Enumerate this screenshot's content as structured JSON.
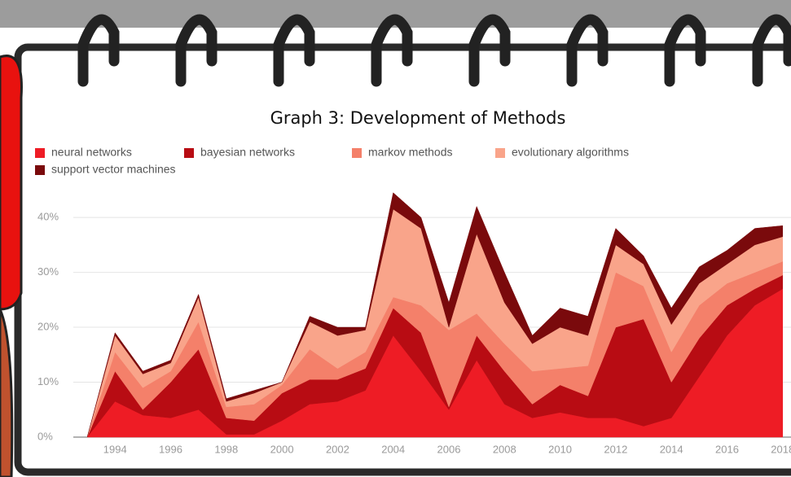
{
  "chart_data": {
    "type": "stacked-area",
    "title": "Graph 3: Development of Methods",
    "x": [
      1993,
      1994,
      1995,
      1996,
      1997,
      1998,
      1999,
      2000,
      2001,
      2002,
      2003,
      2004,
      2005,
      2006,
      2007,
      2008,
      2009,
      2010,
      2011,
      2012,
      2013,
      2014,
      2015,
      2016,
      2017,
      2018
    ],
    "series": [
      {
        "name": "neural networks",
        "color": "#ee1c25",
        "values": [
          0,
          6.5,
          4,
          3.5,
          5,
          0.5,
          0.5,
          3,
          6,
          6.5,
          8.5,
          18.5,
          12,
          5,
          14,
          6,
          3.5,
          4.5,
          3.5,
          3.5,
          2,
          3.5,
          11,
          18.5,
          24,
          27
        ]
      },
      {
        "name": "bayesian networks",
        "color": "#b80c13",
        "values": [
          0,
          5.5,
          1,
          6.5,
          11,
          3,
          2.5,
          5,
          4.5,
          4,
          4,
          5,
          7,
          0.5,
          4.5,
          6,
          2.5,
          5,
          4,
          16.5,
          19.5,
          6.5,
          7,
          5.5,
          3,
          2.5
        ]
      },
      {
        "name": "markov methods",
        "color": "#f4806a",
        "values": [
          0,
          3.5,
          4,
          2,
          5,
          2,
          3,
          1.5,
          5.5,
          2,
          3,
          2,
          5,
          14,
          4,
          5,
          6,
          3,
          5.5,
          10,
          6,
          5.5,
          6,
          4,
          3,
          2.5
        ]
      },
      {
        "name": "evolutionary algorithms",
        "color": "#f9a48a",
        "values": [
          0,
          3,
          2.5,
          1.5,
          4.5,
          1,
          2,
          0.5,
          5,
          6,
          4,
          16,
          14,
          0.5,
          14.5,
          7.5,
          5,
          7.5,
          5.5,
          5,
          4,
          5,
          4,
          3.5,
          5,
          4.5
        ]
      },
      {
        "name": "support vector machines",
        "color": "#7a0a0c",
        "values": [
          0,
          0.5,
          0.5,
          0.5,
          0.5,
          0.5,
          0.5,
          0,
          1,
          1.5,
          0.5,
          3,
          2,
          4.5,
          5,
          5.5,
          1.5,
          3.5,
          3.5,
          3,
          1.5,
          3,
          3,
          2.5,
          3,
          2
        ]
      }
    ],
    "xlim": [
      1992.5,
      2018.3
    ],
    "xticks": [
      1994,
      1996,
      1998,
      2000,
      2002,
      2004,
      2006,
      2008,
      2010,
      2012,
      2014,
      2016,
      2018
    ],
    "ylim": [
      0,
      45.5
    ],
    "yticks": [
      {
        "value": 0,
        "label": "0%"
      },
      {
        "value": 10,
        "label": "10%"
      },
      {
        "value": 20,
        "label": "20%"
      },
      {
        "value": 30,
        "label": "30%"
      },
      {
        "value": 40,
        "label": "40%"
      }
    ],
    "grid": true
  }
}
